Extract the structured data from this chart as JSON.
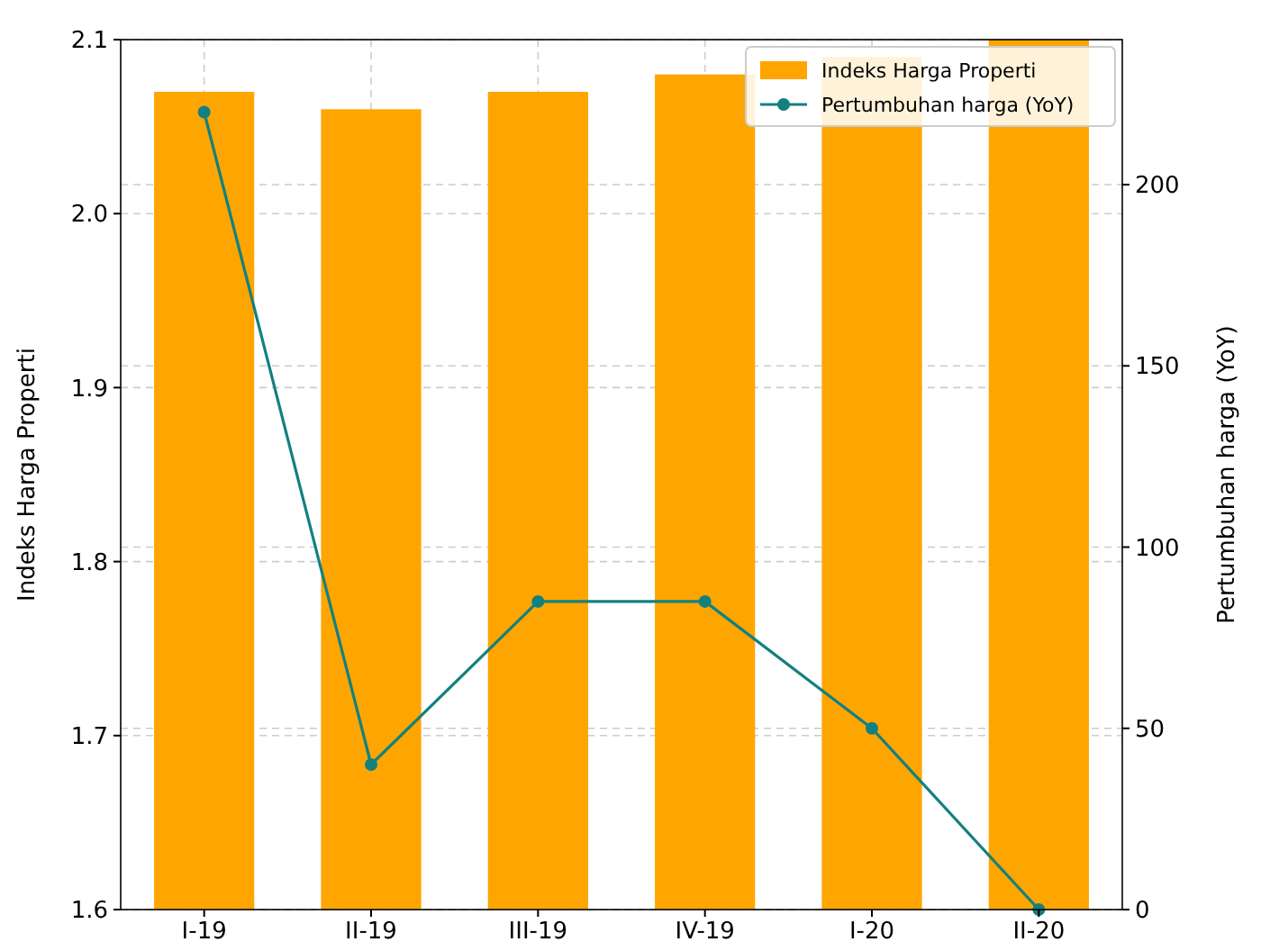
{
  "chart_data": {
    "type": "bar",
    "categories": [
      "I-19",
      "II-19",
      "III-19",
      "IV-19",
      "I-20",
      "II-20"
    ],
    "series": [
      {
        "name": "Indeks Harga Properti",
        "color": "#ffa500",
        "values": [
          2.07,
          2.06,
          2.07,
          2.08,
          2.09,
          2.1
        ]
      },
      {
        "name": "Pertumbuhan harga (YoY)",
        "type": "line",
        "axis": "y2",
        "color": "#138080",
        "values": [
          220,
          40,
          85,
          85,
          50,
          0
        ]
      }
    ],
    "ylabel": "Indeks Harga Properti",
    "y2label": "Pertumbuhan harga (YoY)",
    "ylim": [
      1.6,
      2.1
    ],
    "yticks": [
      1.6,
      1.7,
      1.8,
      1.9,
      {
        "value": 2,
        "label": "2.0"
      },
      2.1
    ],
    "y2lim": [
      0,
      240
    ],
    "y2ticks": [
      0,
      50,
      100,
      150,
      200
    ],
    "grid": true,
    "legend": "top right",
    "marker": "circle",
    "line_style": "solid"
  }
}
